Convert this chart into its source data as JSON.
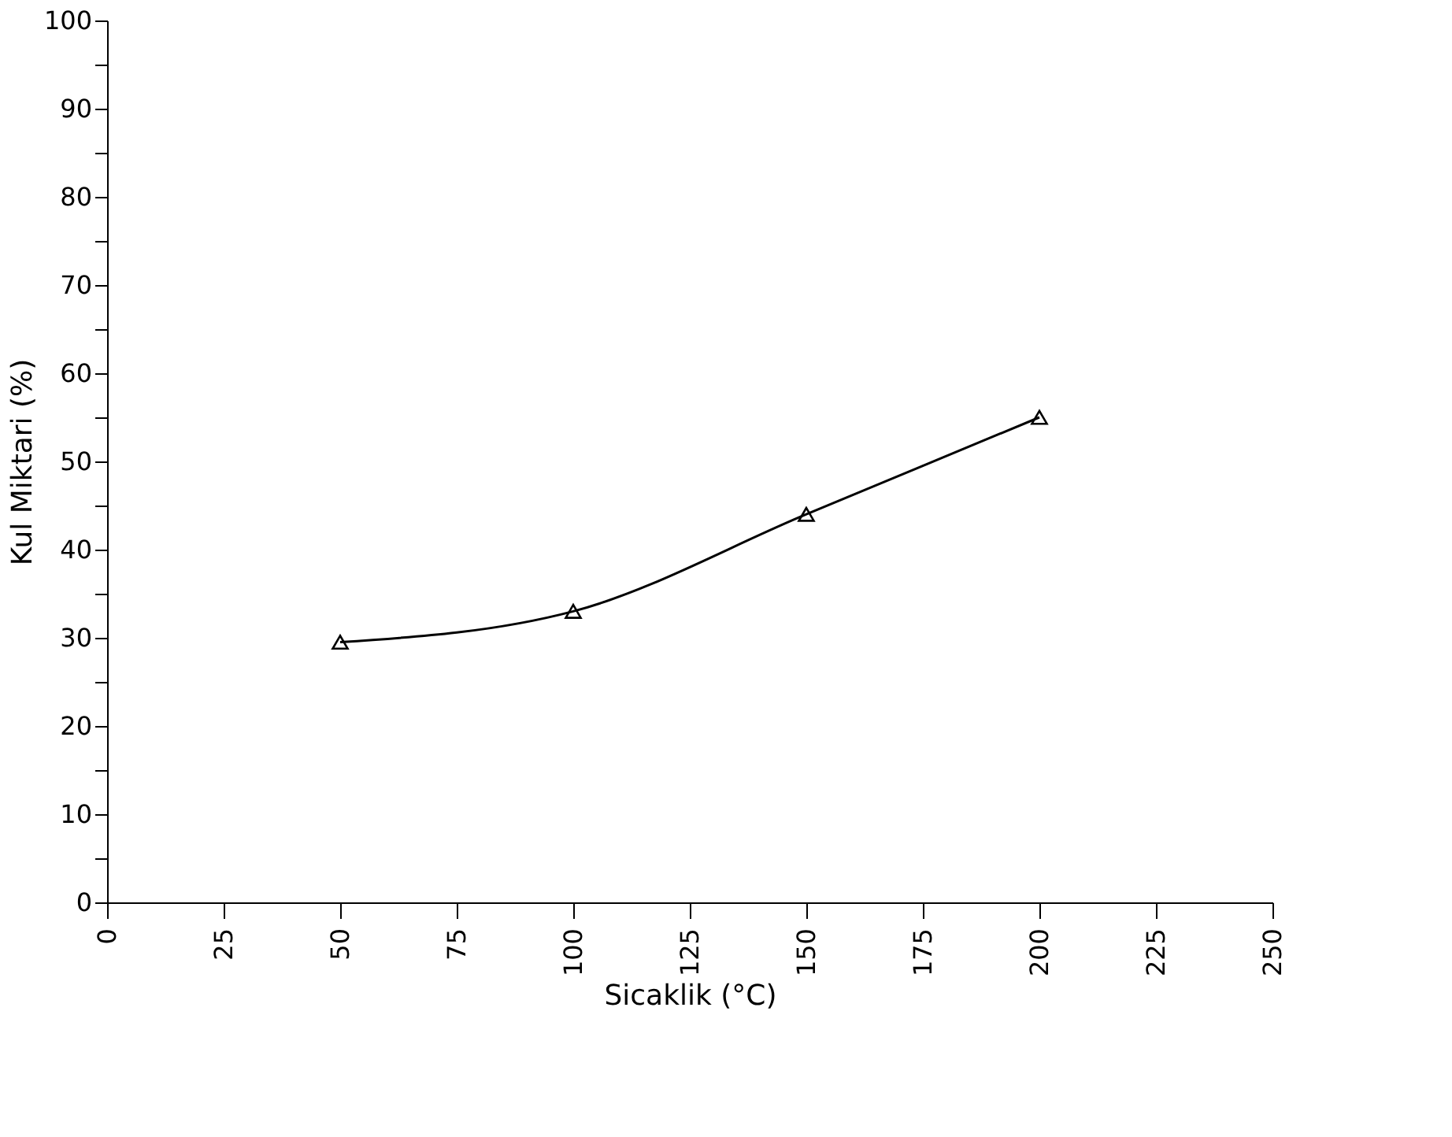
{
  "chart_data": {
    "type": "line",
    "xlabel": "Sicaklik (°C)",
    "ylabel": "Kul Miktari (%)",
    "x": [
      50,
      100,
      150,
      200
    ],
    "series": [
      {
        "color": "#000000",
        "values": [
          29.5,
          33,
          44,
          55
        ]
      }
    ],
    "xlim": [
      0,
      250
    ],
    "xticks": [
      0,
      25,
      50,
      75,
      100,
      125,
      150,
      175,
      200,
      225,
      250
    ],
    "ylim": [
      0,
      100
    ],
    "yticks": [
      0,
      {
        "value": 5,
        "label": null
      },
      10,
      {
        "value": 15,
        "label": null
      },
      20,
      {
        "value": 25,
        "label": null
      },
      30,
      {
        "value": 35,
        "label": null
      },
      40,
      {
        "value": 45,
        "label": null
      },
      50,
      {
        "value": 55,
        "label": null
      },
      60,
      {
        "value": 65,
        "label": null
      },
      70,
      {
        "value": 75,
        "label": null
      },
      80,
      {
        "value": 85,
        "label": null
      },
      90,
      {
        "value": 95,
        "label": null
      },
      100
    ],
    "marker": "triangle",
    "line_style": "solid",
    "grid": false
  }
}
